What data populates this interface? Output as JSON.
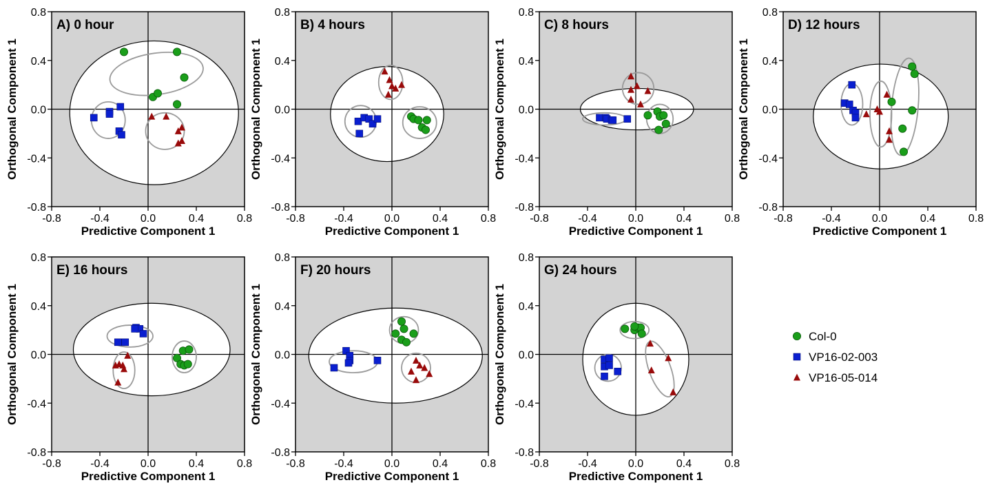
{
  "chart_data": {
    "type": "scatter",
    "xlabel": "Predictive Component 1",
    "ylabel": "Orthogonal Component 1",
    "xlim": [
      -0.8,
      0.8
    ],
    "ylim": [
      -0.8,
      0.8
    ],
    "xticks": [
      "-0.8",
      "-0.4",
      "0.0",
      "0.4",
      "0.8"
    ],
    "yticks": [
      "-0.8",
      "-0.4",
      "0.0",
      "0.4",
      "0.8"
    ],
    "legend": {
      "placement": "right",
      "entries": [
        {
          "name": "Col-0",
          "marker": "circle",
          "color": "#1a9e1a"
        },
        {
          "name": "VP16-02-003",
          "marker": "square",
          "color": "#0a1fd0"
        },
        {
          "name": "VP16-05-014",
          "marker": "triangle",
          "color": "#990a0a"
        }
      ]
    },
    "colors": {
      "plot_background": "#d3d3d3",
      "ellipse_fill": "#ffffff",
      "group_ellipse": "#9a9a9a"
    },
    "panels": [
      {
        "title": "A) 0 hour",
        "confidence_ellipse": {
          "cx": 0.05,
          "cy": -0.03,
          "rx": 0.7,
          "ry": 0.59
        },
        "group_ellipses": [
          {
            "cx": 0.07,
            "cy": 0.29,
            "rx": 0.39,
            "ry": 0.17,
            "angle": -8
          },
          {
            "cx": -0.33,
            "cy": -0.09,
            "rx": 0.14,
            "ry": 0.15,
            "angle": 0
          },
          {
            "cx": 0.14,
            "cy": -0.18,
            "rx": 0.16,
            "ry": 0.15,
            "angle": 0
          }
        ],
        "series": [
          {
            "name": "Col-0",
            "points": [
              [
                -0.2,
                0.47
              ],
              [
                0.24,
                0.47
              ],
              [
                0.3,
                0.26
              ],
              [
                0.04,
                0.1
              ],
              [
                0.08,
                0.13
              ],
              [
                0.24,
                0.04
              ]
            ]
          },
          {
            "name": "VP16-02-003",
            "points": [
              [
                -0.45,
                -0.07
              ],
              [
                -0.32,
                -0.02
              ],
              [
                -0.32,
                -0.04
              ],
              [
                -0.23,
                0.02
              ],
              [
                -0.24,
                -0.18
              ],
              [
                -0.22,
                -0.21
              ]
            ]
          },
          {
            "name": "VP16-05-014",
            "points": [
              [
                0.03,
                -0.06
              ],
              [
                0.15,
                -0.06
              ],
              [
                0.25,
                -0.18
              ],
              [
                0.28,
                -0.15
              ],
              [
                0.25,
                -0.28
              ],
              [
                0.28,
                -0.26
              ]
            ]
          }
        ]
      },
      {
        "title": "B) 4 hours",
        "confidence_ellipse": {
          "cx": -0.04,
          "cy": -0.04,
          "rx": 0.47,
          "ry": 0.39
        },
        "group_ellipses": [
          {
            "cx": -0.26,
            "cy": -0.1,
            "rx": 0.13,
            "ry": 0.13,
            "angle": 0
          },
          {
            "cx": -0.01,
            "cy": 0.22,
            "rx": 0.1,
            "ry": 0.14,
            "angle": 0
          },
          {
            "cx": 0.23,
            "cy": -0.11,
            "rx": 0.14,
            "ry": 0.13,
            "angle": 0
          }
        ],
        "series": [
          {
            "name": "Col-0",
            "points": [
              [
                0.16,
                -0.06
              ],
              [
                0.18,
                -0.08
              ],
              [
                0.22,
                -0.09
              ],
              [
                0.29,
                -0.09
              ],
              [
                0.25,
                -0.15
              ],
              [
                0.28,
                -0.17
              ]
            ]
          },
          {
            "name": "VP16-02-003",
            "points": [
              [
                -0.28,
                -0.1
              ],
              [
                -0.23,
                -0.07
              ],
              [
                -0.19,
                -0.08
              ],
              [
                -0.16,
                -0.12
              ],
              [
                -0.12,
                -0.08
              ],
              [
                -0.27,
                -0.2
              ]
            ]
          },
          {
            "name": "VP16-05-014",
            "points": [
              [
                -0.06,
                0.31
              ],
              [
                -0.02,
                0.24
              ],
              [
                0.0,
                0.19
              ],
              [
                0.03,
                0.17
              ],
              [
                0.08,
                0.2
              ],
              [
                -0.03,
                0.12
              ]
            ]
          }
        ]
      },
      {
        "title": "C) 8 hours",
        "confidence_ellipse": {
          "cx": 0.01,
          "cy": 0.0,
          "rx": 0.47,
          "ry": 0.17
        },
        "group_ellipses": [
          {
            "cx": -0.26,
            "cy": -0.08,
            "rx": 0.18,
            "ry": 0.05,
            "angle": 0
          },
          {
            "cx": 0.02,
            "cy": 0.17,
            "rx": 0.13,
            "ry": 0.13,
            "angle": 0
          },
          {
            "cx": 0.2,
            "cy": -0.08,
            "rx": 0.11,
            "ry": 0.12,
            "angle": 0
          }
        ],
        "series": [
          {
            "name": "Col-0",
            "points": [
              [
                0.1,
                -0.05
              ],
              [
                0.18,
                -0.02
              ],
              [
                0.2,
                -0.06
              ],
              [
                0.25,
                -0.12
              ],
              [
                0.19,
                -0.17
              ],
              [
                0.23,
                -0.05
              ]
            ]
          },
          {
            "name": "VP16-02-003",
            "points": [
              [
                -0.3,
                -0.07
              ],
              [
                -0.25,
                -0.07
              ],
              [
                -0.24,
                -0.08
              ],
              [
                -0.2,
                -0.09
              ],
              [
                -0.19,
                -0.09
              ],
              [
                -0.07,
                -0.08
              ]
            ]
          },
          {
            "name": "VP16-05-014",
            "points": [
              [
                -0.04,
                0.27
              ],
              [
                -0.04,
                0.16
              ],
              [
                0.01,
                0.19
              ],
              [
                0.1,
                0.15
              ],
              [
                -0.04,
                0.08
              ],
              [
                0.04,
                0.04
              ]
            ]
          }
        ]
      },
      {
        "title": "D) 12 hours",
        "confidence_ellipse": {
          "cx": 0.01,
          "cy": -0.06,
          "rx": 0.56,
          "ry": 0.43
        },
        "group_ellipses": [
          {
            "cx": -0.23,
            "cy": 0.04,
            "rx": 0.09,
            "ry": 0.17,
            "angle": 0
          },
          {
            "cx": 0.01,
            "cy": -0.04,
            "rx": 0.09,
            "ry": 0.27,
            "angle": 0
          },
          {
            "cx": 0.21,
            "cy": 0.02,
            "rx": 0.11,
            "ry": 0.4,
            "angle": 5
          }
        ],
        "series": [
          {
            "name": "Col-0",
            "points": [
              [
                0.27,
                0.35
              ],
              [
                0.29,
                0.29
              ],
              [
                0.27,
                -0.01
              ],
              [
                0.1,
                0.06
              ],
              [
                0.19,
                -0.16
              ],
              [
                0.2,
                -0.35
              ]
            ]
          },
          {
            "name": "VP16-02-003",
            "points": [
              [
                -0.23,
                0.2
              ],
              [
                -0.29,
                0.05
              ],
              [
                -0.25,
                0.04
              ],
              [
                -0.22,
                -0.01
              ],
              [
                -0.2,
                -0.03
              ],
              [
                -0.2,
                -0.07
              ]
            ]
          },
          {
            "name": "VP16-05-014",
            "points": [
              [
                -0.02,
                0.0
              ],
              [
                0.0,
                -0.02
              ],
              [
                -0.11,
                -0.04
              ],
              [
                0.06,
                0.12
              ],
              [
                0.08,
                -0.18
              ],
              [
                0.08,
                -0.25
              ]
            ]
          }
        ]
      },
      {
        "title": "E) 16 hours",
        "confidence_ellipse": {
          "cx": 0.03,
          "cy": 0.04,
          "rx": 0.65,
          "ry": 0.38
        },
        "group_ellipses": [
          {
            "cx": -0.15,
            "cy": 0.15,
            "rx": 0.19,
            "ry": 0.09,
            "angle": 0
          },
          {
            "cx": -0.2,
            "cy": -0.13,
            "rx": 0.09,
            "ry": 0.15,
            "angle": 0
          },
          {
            "cx": 0.3,
            "cy": -0.02,
            "rx": 0.1,
            "ry": 0.13,
            "angle": 0
          }
        ],
        "series": [
          {
            "name": "Col-0",
            "points": [
              [
                0.29,
                0.03
              ],
              [
                0.34,
                0.04
              ],
              [
                0.24,
                -0.03
              ],
              [
                0.27,
                -0.08
              ],
              [
                0.3,
                -0.09
              ],
              [
                0.33,
                -0.08
              ]
            ]
          },
          {
            "name": "VP16-02-003",
            "points": [
              [
                -0.1,
                0.22
              ],
              [
                -0.07,
                0.21
              ],
              [
                -0.04,
                0.17
              ],
              [
                -0.25,
                0.1
              ],
              [
                -0.19,
                0.1
              ],
              [
                -0.11,
                0.21
              ]
            ]
          },
          {
            "name": "VP16-05-014",
            "points": [
              [
                -0.27,
                -0.09
              ],
              [
                -0.24,
                -0.08
              ],
              [
                -0.21,
                -0.09
              ],
              [
                -0.2,
                -0.12
              ],
              [
                -0.25,
                -0.23
              ],
              [
                -0.17,
                -0.01
              ]
            ]
          }
        ]
      },
      {
        "title": "F) 20 hours",
        "confidence_ellipse": {
          "cx": 0.03,
          "cy": -0.01,
          "rx": 0.72,
          "ry": 0.39
        },
        "group_ellipses": [
          {
            "cx": -0.32,
            "cy": -0.06,
            "rx": 0.2,
            "ry": 0.09,
            "angle": 0
          },
          {
            "cx": 0.1,
            "cy": 0.2,
            "rx": 0.12,
            "ry": 0.11,
            "angle": 0
          },
          {
            "cx": 0.2,
            "cy": -0.11,
            "rx": 0.12,
            "ry": 0.12,
            "angle": 0
          }
        ],
        "series": [
          {
            "name": "Col-0",
            "points": [
              [
                0.08,
                0.27
              ],
              [
                0.1,
                0.21
              ],
              [
                0.18,
                0.17
              ],
              [
                0.03,
                0.17
              ],
              [
                0.08,
                0.12
              ],
              [
                0.12,
                0.1
              ]
            ]
          },
          {
            "name": "VP16-02-003",
            "points": [
              [
                -0.48,
                -0.11
              ],
              [
                -0.38,
                0.03
              ],
              [
                -0.35,
                -0.01
              ],
              [
                -0.35,
                -0.05
              ],
              [
                -0.36,
                -0.07
              ],
              [
                -0.12,
                -0.05
              ]
            ]
          },
          {
            "name": "VP16-05-014",
            "points": [
              [
                0.2,
                -0.05
              ],
              [
                0.23,
                -0.09
              ],
              [
                0.27,
                -0.11
              ],
              [
                0.16,
                -0.14
              ],
              [
                0.31,
                -0.16
              ],
              [
                0.2,
                -0.21
              ]
            ]
          }
        ]
      },
      {
        "title": "G) 24 hours",
        "confidence_ellipse": {
          "cx": 0.0,
          "cy": -0.04,
          "rx": 0.44,
          "ry": 0.46
        },
        "group_ellipses": [
          {
            "cx": -0.01,
            "cy": 0.2,
            "rx": 0.12,
            "ry": 0.07,
            "angle": 0
          },
          {
            "cx": -0.23,
            "cy": -0.11,
            "rx": 0.11,
            "ry": 0.11,
            "angle": 0
          },
          {
            "cx": 0.2,
            "cy": -0.12,
            "rx": 0.09,
            "ry": 0.24,
            "angle": -20
          }
        ],
        "series": [
          {
            "name": "Col-0",
            "points": [
              [
                -0.09,
                0.21
              ],
              [
                -0.01,
                0.2
              ],
              [
                0.02,
                0.22
              ],
              [
                0.04,
                0.22
              ],
              [
                0.05,
                0.17
              ],
              [
                -0.01,
                0.23
              ]
            ]
          },
          {
            "name": "VP16-02-003",
            "points": [
              [
                -0.26,
                -0.04
              ],
              [
                -0.22,
                -0.03
              ],
              [
                -0.26,
                -0.1
              ],
              [
                -0.22,
                -0.09
              ],
              [
                -0.15,
                -0.14
              ],
              [
                -0.26,
                -0.18
              ]
            ]
          },
          {
            "name": "VP16-05-014",
            "points": [
              [
                0.12,
                0.09
              ],
              [
                0.27,
                -0.03
              ],
              [
                0.13,
                -0.13
              ],
              [
                0.31,
                -0.31
              ]
            ]
          }
        ]
      }
    ]
  }
}
